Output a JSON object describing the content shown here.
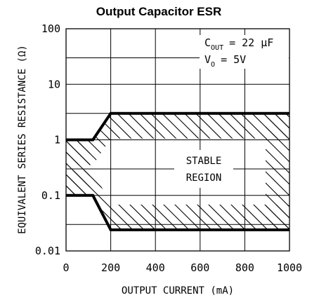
{
  "chart_data": {
    "type": "line",
    "title": "Output Capacitor ESR",
    "xlabel": "OUTPUT CURRENT (mA)",
    "ylabel": "EQUIVALENT SERIES RESISTANCE (Ω)",
    "x_scale": "linear",
    "y_scale": "log",
    "xlim": [
      0,
      1000
    ],
    "ylim": [
      0.01,
      100
    ],
    "x_ticks": [
      0,
      200,
      400,
      600,
      800,
      1000
    ],
    "x_tick_labels": [
      "0",
      "200",
      "400",
      "600",
      "800",
      "1000"
    ],
    "y_ticks": [
      0.01,
      0.1,
      1,
      10,
      100
    ],
    "y_tick_labels": [
      "0.01",
      "0.1",
      "1",
      "10",
      "100"
    ],
    "grid": true,
    "series": [
      {
        "x": [
          0,
          120,
          200,
          1000
        ],
        "y": [
          1,
          1,
          3,
          3
        ]
      },
      {
        "x": [
          0,
          120,
          200,
          1000
        ],
        "y": [
          0.1,
          0.1,
          0.024,
          0.024
        ]
      }
    ],
    "annotations": {
      "cout_symbol": "C",
      "cout_subscript": "OUT",
      "cout_value": "= 22 μF",
      "vo_symbol": "V",
      "vo_subscript": "O",
      "vo_value": "= 5V",
      "region_line1": "STABLE",
      "region_line2": "REGION"
    }
  }
}
